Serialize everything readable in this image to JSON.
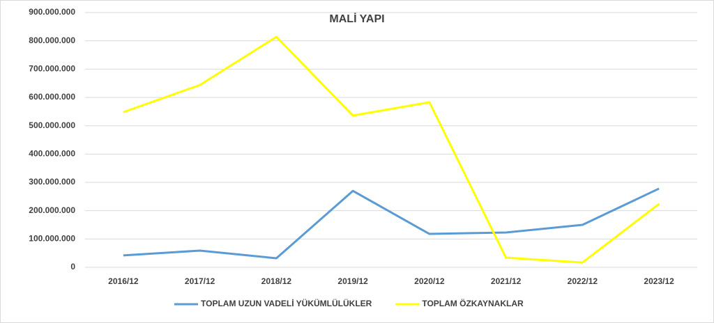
{
  "chart_data": {
    "type": "line",
    "title": "MALİ YAPI",
    "categories": [
      "2016/12",
      "2017/12",
      "2018/12",
      "2019/12",
      "2020/12",
      "2021/12",
      "2022/12",
      "2023/12"
    ],
    "series": [
      {
        "name": "TOPLAM UZUN VADELİ YÜKÜMLÜLÜKLER",
        "color": "#5b9bd5",
        "values": [
          42000000,
          59000000,
          32000000,
          270000000,
          118000000,
          123000000,
          150000000,
          278000000
        ]
      },
      {
        "name": "TOPLAM ÖZKAYNAKLAR",
        "color": "#ffff00",
        "values": [
          548000000,
          644000000,
          814000000,
          536000000,
          583000000,
          34000000,
          17000000,
          224000000
        ]
      }
    ],
    "ylim": [
      0,
      900000000
    ],
    "yticks": [
      0,
      {
        "value": 100000000,
        "label": "100.000.000"
      },
      {
        "value": 200000000,
        "label": "200.000.000"
      },
      {
        "value": 300000000,
        "label": "300.000.000"
      },
      {
        "value": 400000000,
        "label": "400.000.000"
      },
      {
        "value": 500000000,
        "label": "500.000.000"
      },
      {
        "value": 600000000,
        "label": "600.000.000"
      },
      {
        "value": 700000000,
        "label": "700.000.000"
      },
      {
        "value": 800000000,
        "label": "800.000.000"
      },
      {
        "value": 900000000,
        "label": "900.000.000"
      }
    ],
    "grid": true,
    "legend": "bottom"
  }
}
